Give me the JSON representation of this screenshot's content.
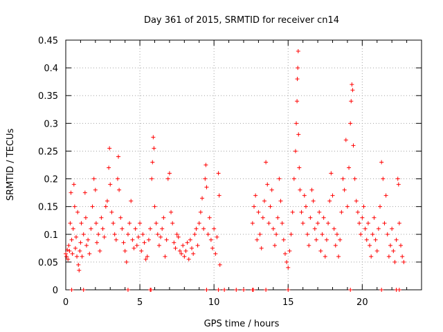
{
  "chart_data": {
    "type": "scatter",
    "title": "Day 361 of 2015, SRMTID for receiver cn14",
    "xlabel": "GPS time / hours",
    "ylabel": "SRMTID / TECUs",
    "xlim": [
      0,
      24
    ],
    "ylim": [
      0,
      0.45
    ],
    "x_ticks": [
      0,
      5,
      10,
      15,
      20
    ],
    "x_tick_labels": [
      "0",
      "5",
      "10",
      "15",
      "20"
    ],
    "y_ticks": [
      0,
      0.05,
      0.1,
      0.15,
      0.2,
      0.25,
      0.3,
      0.35,
      0.4,
      0.45
    ],
    "y_tick_labels": [
      "0",
      "0.05",
      "0.1",
      "0.15",
      "0.2",
      "0.25",
      "0.3",
      "0.35",
      "0.4",
      "0.45"
    ],
    "grid": true,
    "marker": "+",
    "color": "#ff0000",
    "series": [
      {
        "name": "SRMTID",
        "points": [
          [
            0.0,
            0.065
          ],
          [
            0.05,
            0.06
          ],
          [
            0.1,
            0.072
          ],
          [
            0.15,
            0.055
          ],
          [
            0.2,
            0.08
          ],
          [
            0.25,
            0.07
          ],
          [
            0.3,
            0.12
          ],
          [
            0.35,
            0.175
          ],
          [
            0.4,
            0.09
          ],
          [
            0.45,
            0.065
          ],
          [
            0.5,
            0.11
          ],
          [
            0.55,
            0.19
          ],
          [
            0.6,
            0.15
          ],
          [
            0.65,
            0.075
          ],
          [
            0.7,
            0.095
          ],
          [
            0.75,
            0.06
          ],
          [
            0.8,
            0.14
          ],
          [
            0.85,
            0.045
          ],
          [
            0.9,
            0.035
          ],
          [
            0.95,
            0.07
          ],
          [
            1.0,
            0.085
          ],
          [
            1.05,
            0.12
          ],
          [
            1.1,
            0.06
          ],
          [
            1.2,
            0.1
          ],
          [
            1.3,
            0.175
          ],
          [
            1.35,
            0.13
          ],
          [
            1.4,
            0.08
          ],
          [
            1.5,
            0.09
          ],
          [
            1.6,
            0.065
          ],
          [
            1.7,
            0.11
          ],
          [
            1.8,
            0.15
          ],
          [
            1.9,
            0.2
          ],
          [
            2.0,
            0.18
          ],
          [
            2.05,
            0.12
          ],
          [
            2.1,
            0.085
          ],
          [
            2.2,
            0.1
          ],
          [
            2.3,
            0.07
          ],
          [
            2.4,
            0.13
          ],
          [
            2.5,
            0.11
          ],
          [
            2.6,
            0.095
          ],
          [
            2.7,
            0.15
          ],
          [
            2.8,
            0.16
          ],
          [
            2.9,
            0.22
          ],
          [
            2.95,
            0.255
          ],
          [
            3.0,
            0.19
          ],
          [
            3.1,
            0.14
          ],
          [
            3.2,
            0.12
          ],
          [
            3.3,
            0.1
          ],
          [
            3.4,
            0.09
          ],
          [
            3.5,
            0.2
          ],
          [
            3.55,
            0.24
          ],
          [
            3.6,
            0.18
          ],
          [
            3.7,
            0.13
          ],
          [
            3.8,
            0.11
          ],
          [
            3.9,
            0.085
          ],
          [
            4.0,
            0.07
          ],
          [
            4.1,
            0.05
          ],
          [
            4.2,
            0.1
          ],
          [
            4.3,
            0.12
          ],
          [
            4.4,
            0.16
          ],
          [
            4.5,
            0.09
          ],
          [
            4.6,
            0.075
          ],
          [
            4.7,
            0.11
          ],
          [
            4.8,
            0.08
          ],
          [
            4.9,
            0.095
          ],
          [
            5.0,
            0.12
          ],
          [
            5.1,
            0.07
          ],
          [
            5.2,
            0.1
          ],
          [
            5.3,
            0.085
          ],
          [
            5.4,
            0.055
          ],
          [
            5.5,
            0.06
          ],
          [
            5.6,
            0.09
          ],
          [
            5.7,
            0.11
          ],
          [
            5.8,
            0.2
          ],
          [
            5.85,
            0.23
          ],
          [
            5.9,
            0.275
          ],
          [
            5.95,
            0.255
          ],
          [
            6.0,
            0.15
          ],
          [
            6.1,
            0.12
          ],
          [
            6.2,
            0.1
          ],
          [
            6.3,
            0.08
          ],
          [
            6.4,
            0.095
          ],
          [
            6.5,
            0.11
          ],
          [
            6.6,
            0.13
          ],
          [
            6.7,
            0.06
          ],
          [
            6.8,
            0.09
          ],
          [
            6.9,
            0.2
          ],
          [
            7.0,
            0.21
          ],
          [
            7.1,
            0.14
          ],
          [
            7.2,
            0.12
          ],
          [
            7.3,
            0.085
          ],
          [
            7.4,
            0.075
          ],
          [
            7.5,
            0.1
          ],
          [
            7.6,
            0.095
          ],
          [
            7.7,
            0.07
          ],
          [
            7.8,
            0.065
          ],
          [
            7.9,
            0.08
          ],
          [
            8.0,
            0.06
          ],
          [
            8.1,
            0.07
          ],
          [
            8.2,
            0.085
          ],
          [
            8.3,
            0.055
          ],
          [
            8.4,
            0.09
          ],
          [
            8.5,
            0.075
          ],
          [
            8.6,
            0.065
          ],
          [
            8.7,
            0.1
          ],
          [
            8.8,
            0.11
          ],
          [
            8.9,
            0.08
          ],
          [
            9.0,
            0.12
          ],
          [
            9.1,
            0.14
          ],
          [
            9.2,
            0.165
          ],
          [
            9.3,
            0.11
          ],
          [
            9.4,
            0.2
          ],
          [
            9.45,
            0.225
          ],
          [
            9.5,
            0.185
          ],
          [
            9.6,
            0.1
          ],
          [
            9.7,
            0.13
          ],
          [
            9.8,
            0.09
          ],
          [
            9.9,
            0.075
          ],
          [
            10.0,
            0.11
          ],
          [
            10.1,
            0.065
          ],
          [
            10.2,
            0.095
          ],
          [
            10.3,
            0.21
          ],
          [
            10.35,
            0.17
          ],
          [
            10.4,
            0.045
          ],
          [
            12.6,
            0.12
          ],
          [
            12.7,
            0.15
          ],
          [
            12.8,
            0.17
          ],
          [
            12.9,
            0.09
          ],
          [
            13.0,
            0.14
          ],
          [
            13.1,
            0.1
          ],
          [
            13.2,
            0.075
          ],
          [
            13.3,
            0.13
          ],
          [
            13.4,
            0.16
          ],
          [
            13.5,
            0.23
          ],
          [
            13.6,
            0.19
          ],
          [
            13.7,
            0.12
          ],
          [
            13.8,
            0.15
          ],
          [
            13.9,
            0.18
          ],
          [
            14.0,
            0.11
          ],
          [
            14.1,
            0.08
          ],
          [
            14.2,
            0.1
          ],
          [
            14.3,
            0.13
          ],
          [
            14.4,
            0.2
          ],
          [
            14.5,
            0.16
          ],
          [
            14.6,
            0.12
          ],
          [
            14.7,
            0.09
          ],
          [
            14.8,
            0.065
          ],
          [
            14.9,
            0.05
          ],
          [
            15.0,
            0.04
          ],
          [
            15.1,
            0.07
          ],
          [
            15.2,
            0.1
          ],
          [
            15.3,
            0.14
          ],
          [
            15.4,
            0.2
          ],
          [
            15.5,
            0.25
          ],
          [
            15.55,
            0.3
          ],
          [
            15.6,
            0.34
          ],
          [
            15.62,
            0.38
          ],
          [
            15.65,
            0.4
          ],
          [
            15.68,
            0.43
          ],
          [
            15.7,
            0.28
          ],
          [
            15.75,
            0.22
          ],
          [
            15.8,
            0.18
          ],
          [
            15.9,
            0.14
          ],
          [
            16.0,
            0.12
          ],
          [
            16.1,
            0.17
          ],
          [
            16.2,
            0.15
          ],
          [
            16.3,
            0.1
          ],
          [
            16.4,
            0.08
          ],
          [
            16.5,
            0.13
          ],
          [
            16.6,
            0.18
          ],
          [
            16.7,
            0.16
          ],
          [
            16.8,
            0.11
          ],
          [
            16.9,
            0.09
          ],
          [
            17.0,
            0.12
          ],
          [
            17.1,
            0.14
          ],
          [
            17.2,
            0.07
          ],
          [
            17.3,
            0.1
          ],
          [
            17.4,
            0.13
          ],
          [
            17.5,
            0.06
          ],
          [
            17.6,
            0.09
          ],
          [
            17.7,
            0.12
          ],
          [
            17.8,
            0.16
          ],
          [
            17.9,
            0.21
          ],
          [
            18.0,
            0.17
          ],
          [
            18.1,
            0.11
          ],
          [
            18.2,
            0.08
          ],
          [
            18.3,
            0.1
          ],
          [
            18.4,
            0.06
          ],
          [
            18.5,
            0.09
          ],
          [
            18.6,
            0.14
          ],
          [
            18.7,
            0.2
          ],
          [
            18.8,
            0.18
          ],
          [
            18.9,
            0.27
          ],
          [
            19.0,
            0.15
          ],
          [
            19.1,
            0.22
          ],
          [
            19.2,
            0.3
          ],
          [
            19.25,
            0.34
          ],
          [
            19.3,
            0.37
          ],
          [
            19.35,
            0.36
          ],
          [
            19.4,
            0.26
          ],
          [
            19.5,
            0.2
          ],
          [
            19.6,
            0.16
          ],
          [
            19.7,
            0.14
          ],
          [
            19.8,
            0.12
          ],
          [
            19.9,
            0.1
          ],
          [
            20.0,
            0.13
          ],
          [
            20.1,
            0.15
          ],
          [
            20.2,
            0.11
          ],
          [
            20.3,
            0.09
          ],
          [
            20.4,
            0.12
          ],
          [
            20.5,
            0.08
          ],
          [
            20.6,
            0.06
          ],
          [
            20.7,
            0.1
          ],
          [
            20.8,
            0.13
          ],
          [
            20.9,
            0.09
          ],
          [
            21.0,
            0.07
          ],
          [
            21.1,
            0.11
          ],
          [
            21.2,
            0.15
          ],
          [
            21.3,
            0.23
          ],
          [
            21.4,
            0.2
          ],
          [
            21.5,
            0.12
          ],
          [
            21.6,
            0.17
          ],
          [
            21.7,
            0.1
          ],
          [
            21.8,
            0.06
          ],
          [
            21.9,
            0.08
          ],
          [
            22.0,
            0.11
          ],
          [
            22.1,
            0.07
          ],
          [
            22.2,
            0.05
          ],
          [
            22.3,
            0.09
          ],
          [
            22.4,
            0.2
          ],
          [
            22.45,
            0.19
          ],
          [
            22.5,
            0.12
          ],
          [
            22.6,
            0.08
          ],
          [
            22.7,
            0.06
          ],
          [
            22.8,
            0.05
          ],
          [
            0.4,
            0.0
          ],
          [
            1.2,
            0.0
          ],
          [
            4.2,
            0.0
          ],
          [
            5.7,
            0.0
          ],
          [
            5.75,
            0.0
          ],
          [
            9.5,
            0.0
          ],
          [
            10.3,
            0.0
          ],
          [
            10.7,
            0.0
          ],
          [
            11.5,
            0.0
          ],
          [
            12.0,
            0.0
          ],
          [
            12.6,
            0.0
          ],
          [
            12.65,
            0.0
          ],
          [
            13.5,
            0.0
          ],
          [
            15.0,
            0.0
          ],
          [
            19.2,
            0.0
          ],
          [
            21.3,
            0.0
          ],
          [
            22.3,
            0.0
          ],
          [
            22.5,
            0.0
          ]
        ]
      }
    ]
  }
}
